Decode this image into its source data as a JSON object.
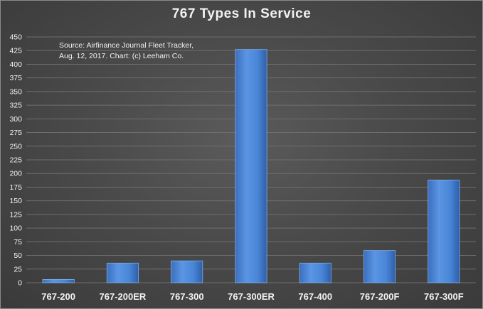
{
  "chart_data": {
    "type": "bar",
    "title": "767 Types In Service",
    "annotation": [
      "Source: Airfinance Journal Fleet Tracker,",
      "Aug. 12, 2017. Chart: (c) Leeham Co."
    ],
    "categories": [
      "767-200",
      "767-200ER",
      "767-300",
      "767-300ER",
      "767-400",
      "767-200F",
      "767-300F"
    ],
    "values": [
      6,
      36,
      40,
      427,
      36,
      59,
      188
    ],
    "ylim": [
      0,
      450
    ],
    "yticks": [
      0,
      25,
      50,
      75,
      100,
      125,
      150,
      175,
      200,
      225,
      250,
      275,
      300,
      325,
      350,
      375,
      400,
      425,
      450
    ],
    "grid": true,
    "bar_color": "#4a86d8",
    "xlabel": "",
    "ylabel": ""
  }
}
